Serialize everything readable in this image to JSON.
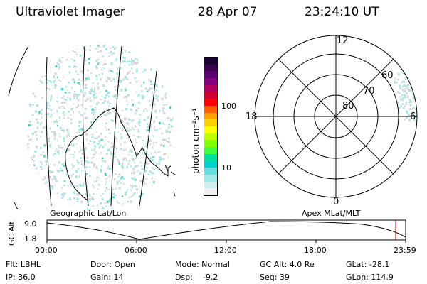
{
  "header": {
    "title": "Ultraviolet Imager",
    "date": "28 Apr 07",
    "time": "23:24:10 UT"
  },
  "left_map": {
    "caption": "Geographic Lat/Lon"
  },
  "colorbar": {
    "unit_label": "photon cm⁻²s⁻¹",
    "ticks": [
      "100",
      "10"
    ],
    "colors": [
      "#1a0033",
      "#3a0050",
      "#5a0070",
      "#800080",
      "#b00060",
      "#d00030",
      "#ff0000",
      "#ff6000",
      "#ffa000",
      "#ffd000",
      "#ffff00",
      "#c0ff00",
      "#80ff00",
      "#40ff40",
      "#00e0a0",
      "#00d0d0",
      "#60e0e0",
      "#a0e8e8",
      "#d0f0f0",
      "#f0f0f0"
    ]
  },
  "polar": {
    "labels": {
      "top": "12",
      "bottom": "0",
      "left": "18",
      "right": "6",
      "r60": "60",
      "r70": "70",
      "r80": "80"
    },
    "caption": "Apex MLat/MLT"
  },
  "timeline": {
    "axis_label": "GC Alt",
    "y_ticks": [
      "9.0",
      "1.8"
    ],
    "x_ticks": [
      "00:00",
      "06:00",
      "12:00",
      "18:00",
      "23:59"
    ]
  },
  "info": {
    "row1": {
      "flt": "Flt: LBHL",
      "door": "Door: Open",
      "mode": "Mode: Normal",
      "gcalt": "GC Alt: 4.0 Re",
      "glat": "GLat: -28.1"
    },
    "row2": {
      "ip": "IP: 36.0",
      "gain": "Gain: 14",
      "dsp": "Dsp:    -9.2",
      "seq": "Seq: 39",
      "glon": "GLon: 114.9"
    }
  },
  "colors": {
    "speckle_primary": "#a8e4e4",
    "speckle_secondary": "#d6d6d6",
    "speckle_bright": "#40d0c0",
    "marker_red": "#cc0000"
  }
}
